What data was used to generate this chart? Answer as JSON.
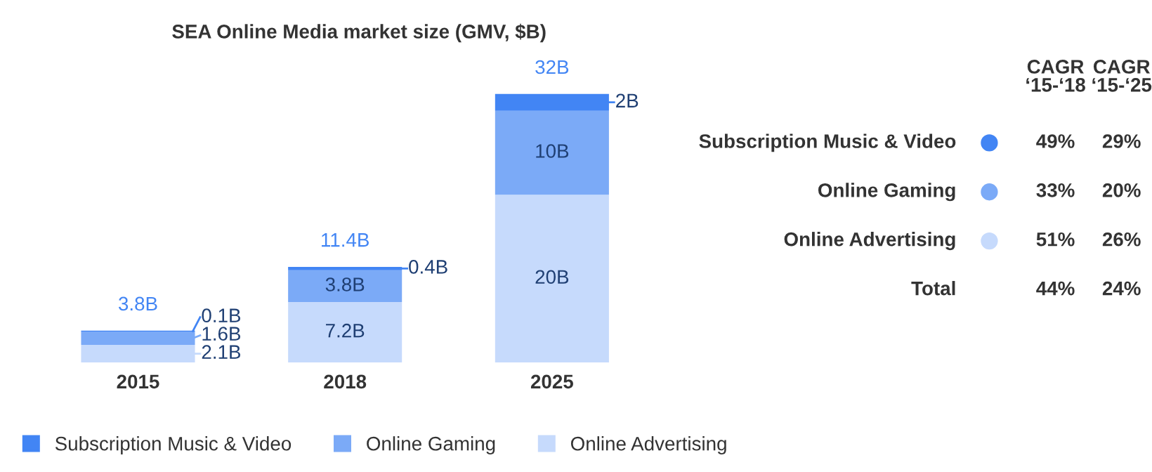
{
  "chart_data": [
    {
      "type": "bar",
      "title": "SEA Online Media market size (GMV, $B)",
      "categories": [
        "2015",
        "2018",
        "2025"
      ],
      "stacked": true,
      "legend": "bottom",
      "series": [
        {
          "name": "Online Advertising",
          "color": "#c6dafc",
          "values": [
            2.1,
            7.2,
            20
          ],
          "value_labels": [
            "2.1B",
            "7.2B",
            "20B"
          ]
        },
        {
          "name": "Online Gaming",
          "color": "#7baaf7",
          "values": [
            1.6,
            3.8,
            10
          ],
          "value_labels": [
            "1.6B",
            "3.8B",
            "10B"
          ]
        },
        {
          "name": "Subscription Music & Video",
          "color": "#4285f4",
          "values": [
            0.1,
            0.4,
            2
          ],
          "value_labels": [
            "0.1B",
            "0.4B",
            "2B"
          ]
        }
      ],
      "totals": [
        "3.8B",
        "11.4B",
        "32B"
      ]
    },
    {
      "type": "other",
      "categories": [
        "Subscription Music & Video",
        "Online Gaming",
        "Online Advertising",
        "Total"
      ],
      "colors": [
        "#4285f4",
        "#7baaf7",
        "#c6dafc",
        null
      ],
      "series": [
        {
          "name": "CAGR\n‘15-‘18",
          "values": [
            49,
            33,
            51,
            44
          ],
          "value_labels": [
            "49%",
            "33%",
            "51%",
            "44%"
          ]
        },
        {
          "name": "CAGR\n‘15-‘25",
          "values": [
            29,
            20,
            26,
            24
          ],
          "value_labels": [
            "29%",
            "20%",
            "26%",
            "24%"
          ]
        }
      ]
    }
  ]
}
